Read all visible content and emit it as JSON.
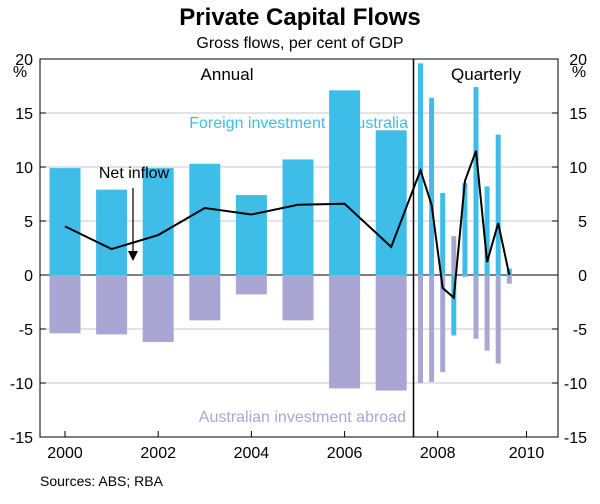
{
  "chart_data": {
    "type": "bar",
    "title": "Private Capital Flows",
    "subtitle": "Gross flows, per cent of GDP",
    "unit_left": "%",
    "unit_right": "%",
    "ylim": [
      -15,
      20
    ],
    "yticks": [
      "20",
      "15",
      "10",
      "5",
      "0",
      "-5",
      "-10",
      "-15"
    ],
    "ytick_values": [
      20,
      15,
      10,
      5,
      0,
      -5,
      -10,
      -15
    ],
    "xtick_labels": [
      "2000",
      "2002",
      "2004",
      "2006",
      "2008",
      "2010"
    ],
    "xtick_years": [
      2000,
      2002,
      2004,
      2006,
      2008,
      2010
    ],
    "panels": {
      "annual": "Annual",
      "quarterly": "Quarterly"
    },
    "colors": {
      "inflow": "#3ebde8",
      "outflow": "#a9a6d3",
      "net": "#000000"
    },
    "annotations": {
      "inflow_label": "Foreign investment in Australia",
      "outflow_label": "Australian investment abroad",
      "net_label": "Net inflow"
    },
    "annual": {
      "x": [
        2000,
        2001,
        2002,
        2003,
        2004,
        2005,
        2006,
        2007
      ],
      "series": [
        {
          "name": "Foreign investment in Australia",
          "values": [
            9.9,
            7.9,
            9.9,
            10.3,
            7.4,
            10.7,
            17.1,
            13.4
          ]
        },
        {
          "name": "Australian investment abroad",
          "values": [
            -5.4,
            -5.5,
            -6.2,
            -4.2,
            -1.8,
            -4.2,
            -10.5,
            -10.7
          ]
        },
        {
          "name": "Net inflow",
          "values": [
            4.5,
            2.4,
            3.7,
            6.2,
            5.6,
            6.5,
            6.6,
            2.6
          ]
        }
      ]
    },
    "quarterly": {
      "x": [
        "2007Q3",
        "2007Q4",
        "2008Q1",
        "2008Q2",
        "2008Q3",
        "2008Q4",
        "2009Q1",
        "2009Q2",
        "2009Q3",
        "2009Q4",
        "2010Q1"
      ],
      "series": [
        {
          "name": "Foreign investment in Australia",
          "values": [
            19.6,
            16.4,
            7.6,
            -5.6,
            8.5,
            17.4,
            8.2,
            13.0,
            0.6,
            null,
            null
          ]
        },
        {
          "name": "Australian investment abroad",
          "values": [
            -10.0,
            -9.9,
            -9.0,
            3.6,
            -0.2,
            -5.9,
            -7.0,
            -8.2,
            -0.8,
            null,
            null
          ]
        },
        {
          "name": "Net inflow",
          "values": [
            9.7,
            6.5,
            -1.2,
            -2.1,
            8.7,
            11.5,
            1.2,
            4.8,
            0.0,
            null,
            null
          ]
        }
      ]
    }
  },
  "source": "Sources: ABS; RBA"
}
